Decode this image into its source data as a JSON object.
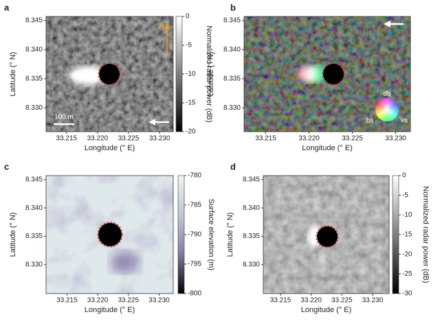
{
  "chart_data": [
    {
      "type": "image",
      "panel_label": "a",
      "xlabel": "Longitude (° E)",
      "ylabel": "Latitude (° N)",
      "xlim": [
        33.2117,
        33.2322
      ],
      "ylim": [
        8.3259,
        8.3457
      ],
      "xticks": [
        33.215,
        {
          "value": 33.22,
          "label": "33.220"
        },
        33.225,
        {
          "value": 33.23,
          "label": "33.230"
        }
      ],
      "yticks": [
        {
          "value": 8.33,
          "label": "8.330"
        },
        8.335,
        {
          "value": 8.34,
          "label": "8.340"
        },
        8.345
      ],
      "colorbar": {
        "label": "Normalized radar power (dB)",
        "clim": [
          -20,
          0
        ],
        "ticks": [
          0,
          -5,
          -10,
          -15,
          -20
        ]
      },
      "annotations": [
        "N",
        "100 m"
      ]
    },
    {
      "type": "image",
      "panel_label": "b",
      "xlabel": "Longitude (° E)",
      "ylabel": "Latitude (° N)",
      "xlim": [
        33.2125,
        33.2317
      ],
      "ylim": [
        8.3259,
        8.3457
      ],
      "xticks": [
        33.215,
        {
          "value": 33.22,
          "label": "33.220"
        },
        33.225,
        {
          "value": 33.23,
          "label": "33.230"
        }
      ],
      "yticks": [
        {
          "value": 8.33,
          "label": "8.330"
        },
        8.335,
        {
          "value": 8.34,
          "label": "8.340"
        },
        8.345
      ],
      "annotations": [
        "db",
        "bs",
        "vs"
      ]
    },
    {
      "type": "image",
      "panel_label": "c",
      "xlabel": "Longitude (° E)",
      "ylabel": "Latitude (° N)",
      "xlim": [
        33.2116,
        33.2323
      ],
      "ylim": [
        8.3249,
        8.3457
      ],
      "xticks": [
        33.215,
        {
          "value": 33.22,
          "label": "33.220"
        },
        33.225,
        {
          "value": 33.23,
          "label": "33.230"
        }
      ],
      "yticks": [
        {
          "value": 8.33,
          "label": "8.330"
        },
        8.335,
        {
          "value": 8.34,
          "label": "8.340"
        },
        8.345
      ],
      "colorbar": {
        "label": "Surface elevation (m)",
        "clim": [
          -800,
          -780
        ],
        "ticks": [
          -780,
          -785,
          -790,
          -795,
          -800
        ]
      }
    },
    {
      "type": "image",
      "panel_label": "d",
      "xlabel": "Longitude (° E)",
      "ylabel": "Latitude (° N)",
      "xlim": [
        33.2122,
        33.2327
      ],
      "ylim": [
        8.3249,
        8.3457
      ],
      "xticks": [
        33.215,
        {
          "value": 33.22,
          "label": "33.220"
        },
        33.225,
        {
          "value": 33.23,
          "label": "33.230"
        }
      ],
      "yticks": [
        {
          "value": 8.33,
          "label": "8.330"
        },
        8.335,
        {
          "value": 8.34,
          "label": "8.340"
        },
        8.345
      ],
      "colorbar": {
        "label": "Normalized radar power (dB)",
        "clim": [
          -30,
          0
        ],
        "ticks": [
          0,
          -5,
          -10,
          -15,
          -20,
          -25,
          -30
        ]
      }
    }
  ]
}
